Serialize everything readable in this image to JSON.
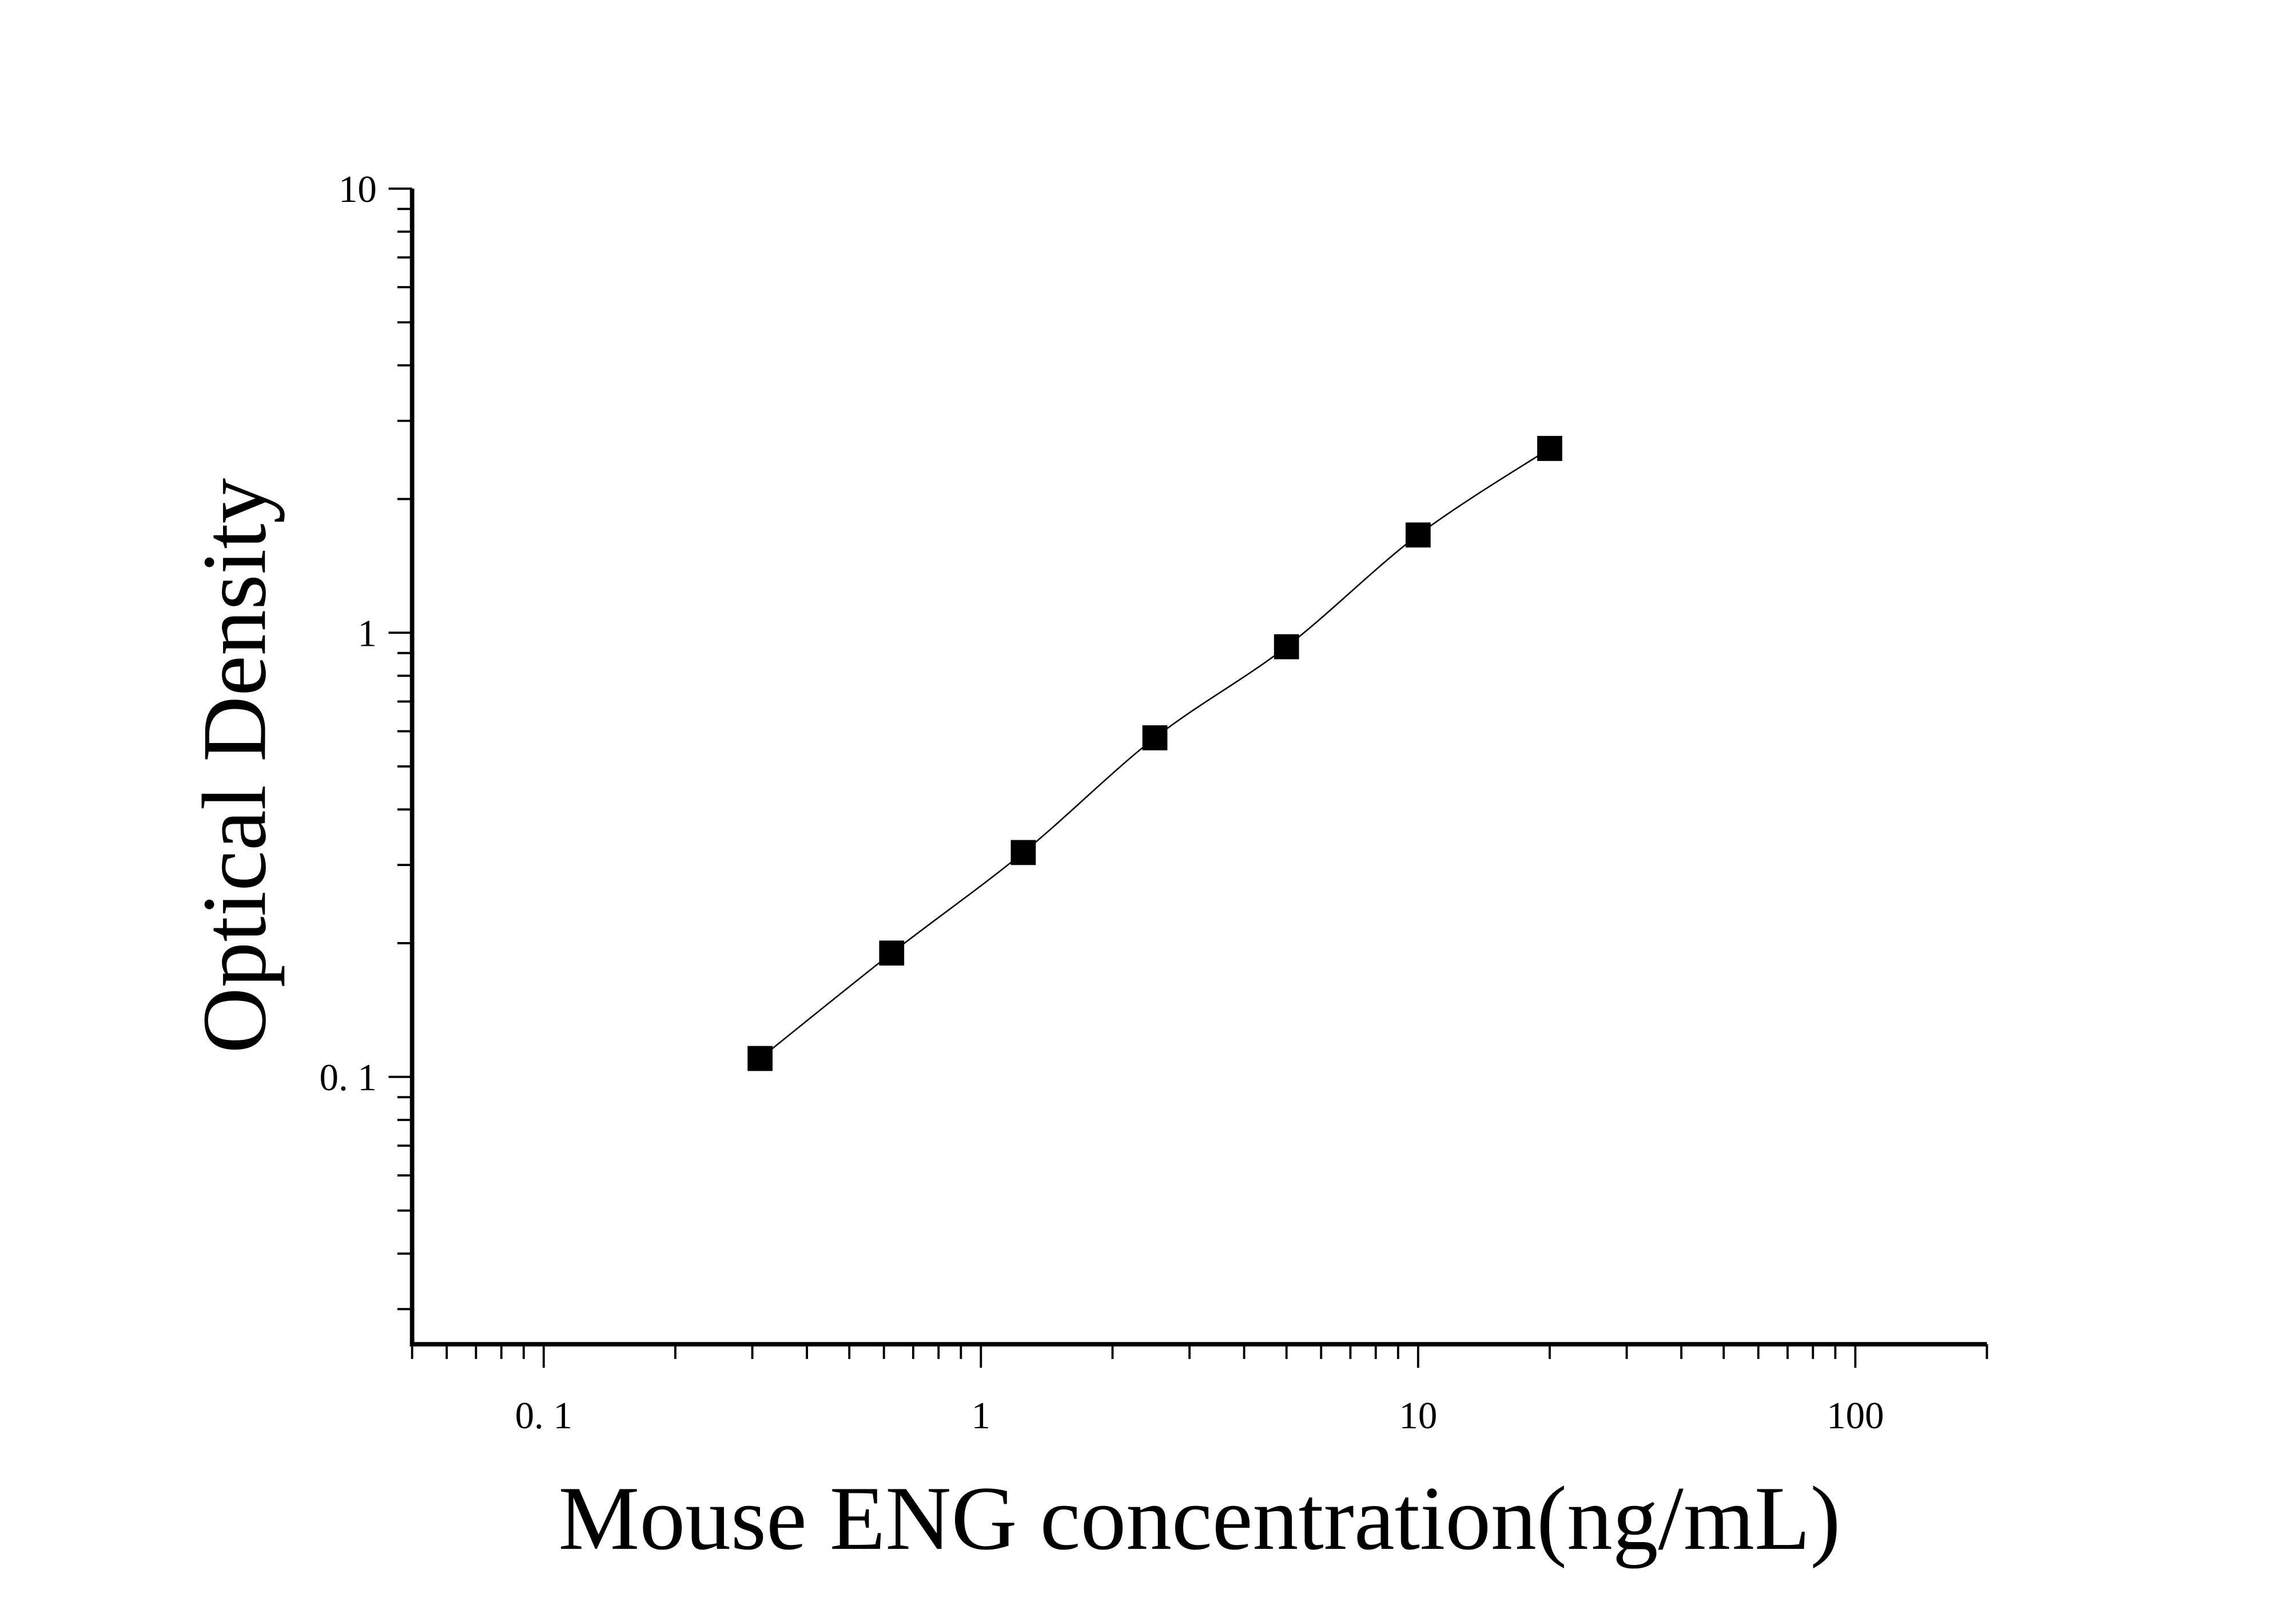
{
  "chart_data": {
    "type": "scatter",
    "title": "",
    "xlabel": "Mouse ENG concentration(ng/mL)",
    "ylabel": "Optical Density",
    "x_scale": "log",
    "y_scale": "log",
    "xlim": [
      0.05,
      200
    ],
    "ylim": [
      0.025,
      10
    ],
    "x_ticks": [
      0.1,
      1,
      10,
      100
    ],
    "x_tick_labels": [
      "0. 1",
      "1",
      "10",
      "100"
    ],
    "y_ticks": [
      0.1,
      1,
      10
    ],
    "y_tick_labels": [
      "0. 1",
      "1",
      "10"
    ],
    "grid": false,
    "legend": "none",
    "marker": "square",
    "color": "#000000",
    "series": [
      {
        "x": [
          0.3125,
          0.625,
          1.25,
          2.5,
          5,
          10,
          20
        ],
        "y": [
          0.11,
          0.19,
          0.32,
          0.58,
          0.93,
          1.66,
          2.6
        ],
        "fit_line": true
      }
    ]
  }
}
